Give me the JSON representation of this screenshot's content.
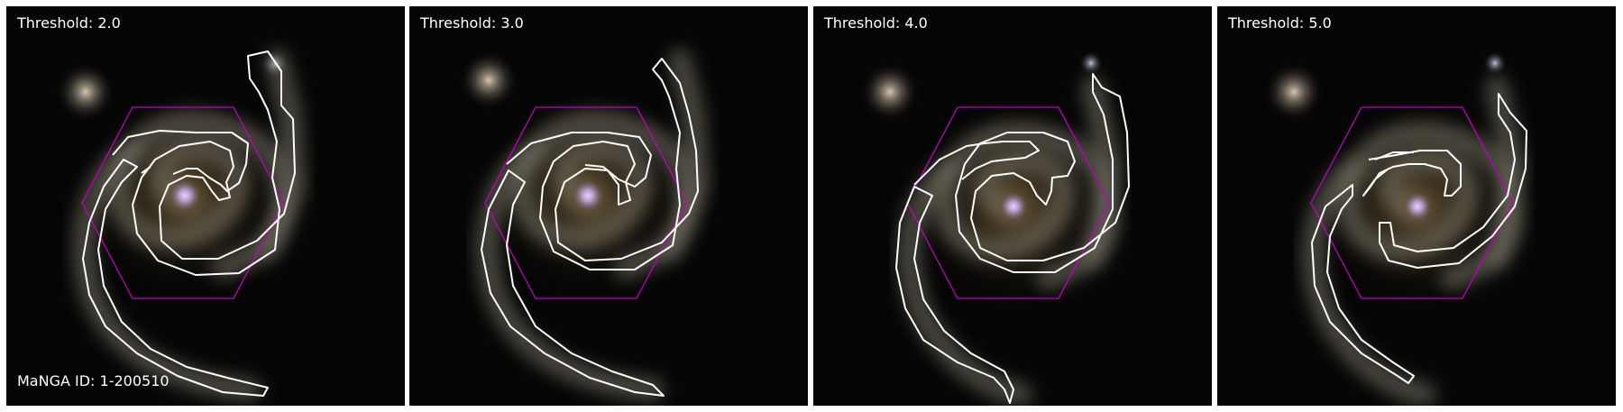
{
  "figure": {
    "panels": [
      {
        "threshold_label": "Threshold: 2.0"
      },
      {
        "threshold_label": "Threshold: 3.0"
      },
      {
        "threshold_label": "Threshold: 4.0"
      },
      {
        "threshold_label": "Threshold: 5.0"
      }
    ],
    "manga_label": "MaNGA ID: 1-200510"
  },
  "colors": {
    "background": "#050505",
    "contour": "#ffffff",
    "hexagon": "#c000c0",
    "label_text": "#ffffff",
    "bulge": "#d8b8ff",
    "arm_glow": "#a88a55"
  }
}
